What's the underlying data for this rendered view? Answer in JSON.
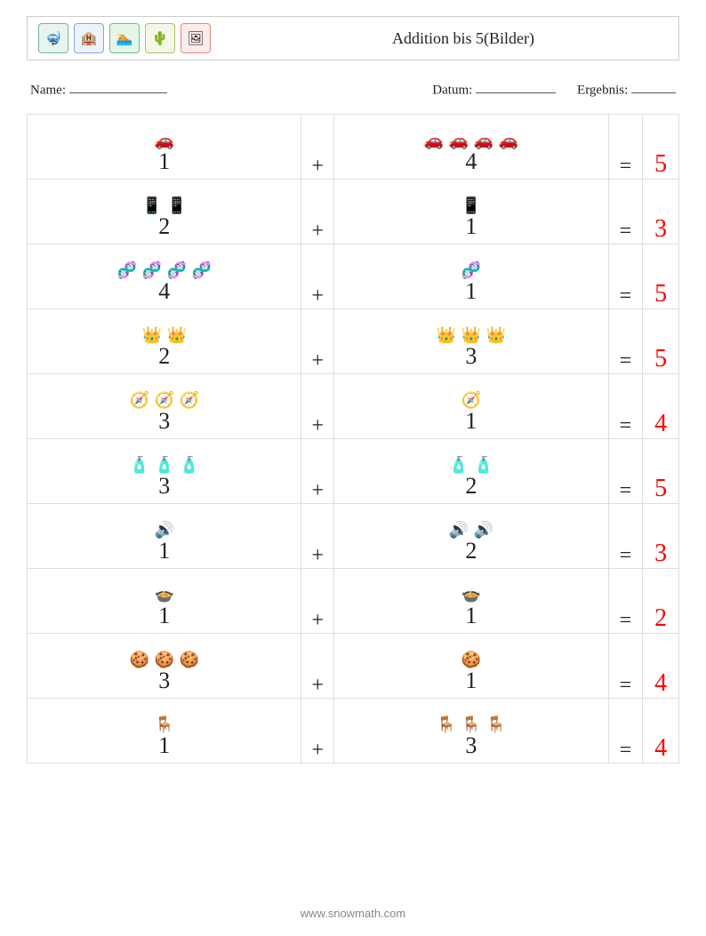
{
  "header": {
    "title": "Addition bis 5(Bilder)",
    "icons": [
      {
        "name": "snorkel-icon",
        "glyph": "🤿",
        "bg": "#e8f4f0",
        "border": "#6fb8a0"
      },
      {
        "name": "hotel-icon",
        "glyph": "🏨",
        "bg": "#eef3fb",
        "border": "#7fa8d8"
      },
      {
        "name": "swim-icon",
        "glyph": "🏊",
        "bg": "#e6f5ea",
        "border": "#6fbf7a"
      },
      {
        "name": "cactus-icon",
        "glyph": "🌵",
        "bg": "#f3f7e6",
        "border": "#aebf6f"
      },
      {
        "name": "photo-icon",
        "glyph": "🖼",
        "bg": "#fdeceb",
        "border": "#e08a7a"
      }
    ]
  },
  "meta": {
    "name_label": "Name:",
    "date_label": "Datum:",
    "result_label": "Ergebnis:"
  },
  "style": {
    "answer_color": "#ff0000",
    "number_color": "#222222",
    "border_color": "#dddddd",
    "operand_fontsize": 26,
    "answer_fontsize": 28
  },
  "problems": [
    {
      "a": 1,
      "b": 4,
      "sum": 5,
      "icon": "🚗"
    },
    {
      "a": 2,
      "b": 1,
      "sum": 3,
      "icon": "📱"
    },
    {
      "a": 4,
      "b": 1,
      "sum": 5,
      "icon": "🧬"
    },
    {
      "a": 2,
      "b": 3,
      "sum": 5,
      "icon": "👑"
    },
    {
      "a": 3,
      "b": 1,
      "sum": 4,
      "icon": "🧭"
    },
    {
      "a": 3,
      "b": 2,
      "sum": 5,
      "icon": "🧴"
    },
    {
      "a": 1,
      "b": 2,
      "sum": 3,
      "icon": "🔊"
    },
    {
      "a": 1,
      "b": 1,
      "sum": 2,
      "icon": "🍲"
    },
    {
      "a": 3,
      "b": 1,
      "sum": 4,
      "icon": "🍪"
    },
    {
      "a": 1,
      "b": 3,
      "sum": 4,
      "icon": "🪑"
    }
  ],
  "operators": {
    "plus": "+",
    "equals": "="
  },
  "footer": "www.snowmath.com"
}
